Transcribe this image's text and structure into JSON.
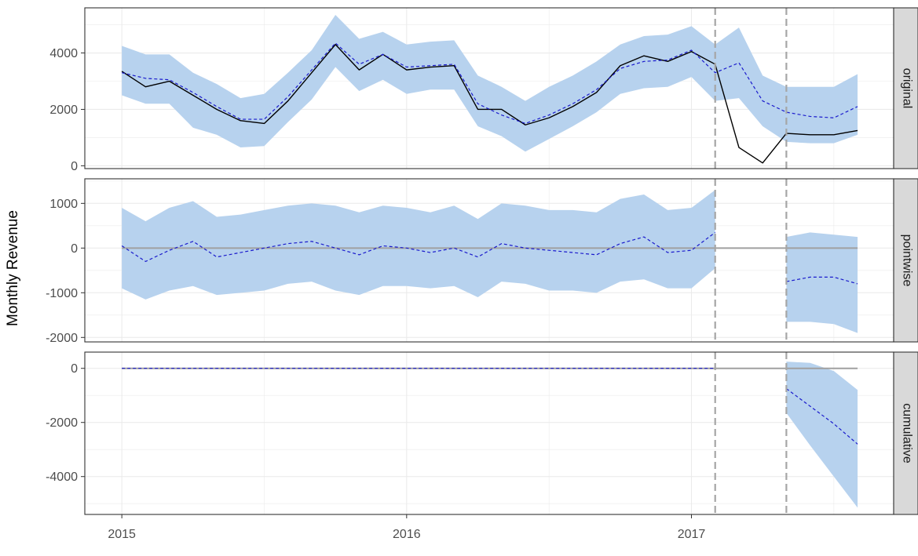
{
  "chart_data": {
    "type": "line",
    "ylabel": "Monthly Revenue",
    "xlabel": "",
    "colors": {
      "band": "#b7d2ee",
      "observed": "#000000",
      "predicted": "#1a1acc",
      "reference": "#a0a0a0",
      "strip": "#d9d9d9",
      "grid": "#ebebeb"
    },
    "x": [
      2015.0,
      2015.0833,
      2015.1667,
      2015.25,
      2015.3333,
      2015.4167,
      2015.5,
      2015.5833,
      2015.6667,
      2015.75,
      2015.8333,
      2015.9167,
      2016.0,
      2016.0833,
      2016.1667,
      2016.25,
      2016.3333,
      2016.4167,
      2016.5,
      2016.5833,
      2016.6667,
      2016.75,
      2016.8333,
      2016.9167,
      2017.0,
      2017.0833,
      2017.1667,
      2017.25,
      2017.3333,
      2017.4167,
      2017.5,
      2017.5833
    ],
    "x_ticks": [
      2015,
      2016,
      2017
    ],
    "x_tick_labels": [
      "2015",
      "2016",
      "2017"
    ],
    "xlim": [
      2014.87,
      2017.71
    ],
    "intervention_lines": [
      2017.0833,
      2017.3333
    ],
    "panels": [
      {
        "name": "original",
        "ylim": [
          -100,
          5600
        ],
        "y_ticks": [
          0,
          2000,
          4000
        ],
        "y_tick_labels": [
          "0",
          "2000",
          "4000"
        ],
        "series": [
          {
            "name": "observed",
            "values": [
              3350,
              2800,
              3000,
              2500,
              2000,
              1600,
              1500,
              2300,
              3300,
              4300,
              3400,
              3950,
              3400,
              3500,
              3550,
              2000,
              2000,
              1450,
              1700,
              2100,
              2600,
              3550,
              3900,
              3700,
              4050,
              3600,
              650,
              100,
              1150,
              1100,
              1100,
              1250
            ]
          },
          {
            "name": "predicted",
            "values": [
              3300,
              3100,
              3050,
              2600,
              2100,
              1650,
              1650,
              2450,
              3400,
              4350,
              3600,
              3950,
              3500,
              3550,
              3600,
              2200,
              1800,
              1500,
              1800,
              2200,
              2700,
              3450,
              3700,
              3750,
              4100,
              3300,
              3650,
              2300,
              1900,
              1750,
              1700,
              2100
            ]
          },
          {
            "name": "band_upper",
            "values": [
              4250,
              3950,
              3950,
              3300,
              2900,
              2400,
              2550,
              3300,
              4100,
              5350,
              4500,
              4750,
              4300,
              4400,
              4450,
              3200,
              2800,
              2300,
              2800,
              3200,
              3700,
              4300,
              4600,
              4650,
              4950,
              4300,
              4900,
              3200,
              2800,
              2800,
              2800,
              3250
            ]
          },
          {
            "name": "band_lower",
            "values": [
              2500,
              2200,
              2200,
              1350,
              1100,
              650,
              700,
              1550,
              2350,
              3500,
              2650,
              3050,
              2550,
              2700,
              2700,
              1400,
              1050,
              500,
              950,
              1400,
              1900,
              2550,
              2750,
              2800,
              3150,
              2300,
              2400,
              1400,
              850,
              800,
              800,
              1100
            ]
          }
        ]
      },
      {
        "name": "pointwise",
        "ylim": [
          -2100,
          1550
        ],
        "y_ticks": [
          -2000,
          -1000,
          0,
          1000
        ],
        "y_tick_labels": [
          "-2000",
          "-1000",
          "0",
          "1000"
        ],
        "series": [
          {
            "name": "predicted",
            "values": [
              50,
              -300,
              -50,
              150,
              -200,
              -100,
              0,
              100,
              150,
              0,
              -150,
              50,
              0,
              -100,
              0,
              -200,
              100,
              0,
              -50,
              -100,
              -150,
              100,
              250,
              -100,
              -50,
              350,
              null,
              null,
              -750,
              -650,
              -650,
              -800
            ]
          },
          {
            "name": "band_upper",
            "values": [
              900,
              600,
              900,
              1050,
              700,
              750,
              850,
              950,
              1000,
              950,
              800,
              950,
              900,
              800,
              950,
              650,
              1000,
              950,
              850,
              850,
              800,
              1100,
              1200,
              850,
              900,
              1300,
              null,
              null,
              250,
              350,
              300,
              250
            ]
          },
          {
            "name": "band_lower",
            "values": [
              -900,
              -1150,
              -950,
              -850,
              -1050,
              -1000,
              -950,
              -800,
              -750,
              -950,
              -1050,
              -850,
              -850,
              -900,
              -850,
              -1100,
              -750,
              -800,
              -950,
              -950,
              -1000,
              -750,
              -700,
              -900,
              -900,
              -450,
              null,
              null,
              -1650,
              -1650,
              -1700,
              -1900
            ]
          },
          {
            "name": "reference",
            "values": [
              0,
              0
            ]
          }
        ]
      },
      {
        "name": "cumulative",
        "ylim": [
          -5400,
          600
        ],
        "y_ticks": [
          -4000,
          -2000,
          0
        ],
        "y_tick_labels": [
          "-4000",
          "-2000",
          "0"
        ],
        "series": [
          {
            "name": "predicted",
            "values": [
              0,
              0,
              0,
              0,
              0,
              0,
              0,
              0,
              0,
              0,
              0,
              0,
              0,
              0,
              0,
              0,
              0,
              0,
              0,
              0,
              0,
              0,
              0,
              0,
              0,
              0,
              null,
              null,
              -750,
              -1400,
              -2050,
              -2800
            ]
          },
          {
            "name": "band_upper",
            "values": [
              null,
              null,
              null,
              null,
              null,
              null,
              null,
              null,
              null,
              null,
              null,
              null,
              null,
              null,
              null,
              null,
              null,
              null,
              null,
              null,
              null,
              null,
              null,
              null,
              null,
              null,
              null,
              null,
              250,
              200,
              -100,
              -800
            ]
          },
          {
            "name": "band_lower",
            "values": [
              null,
              null,
              null,
              null,
              null,
              null,
              null,
              null,
              null,
              null,
              null,
              null,
              null,
              null,
              null,
              null,
              null,
              null,
              null,
              null,
              null,
              null,
              null,
              null,
              null,
              null,
              null,
              null,
              -1650,
              -2850,
              -4000,
              -5150
            ]
          },
          {
            "name": "reference",
            "values": [
              0,
              0
            ]
          }
        ]
      }
    ]
  }
}
